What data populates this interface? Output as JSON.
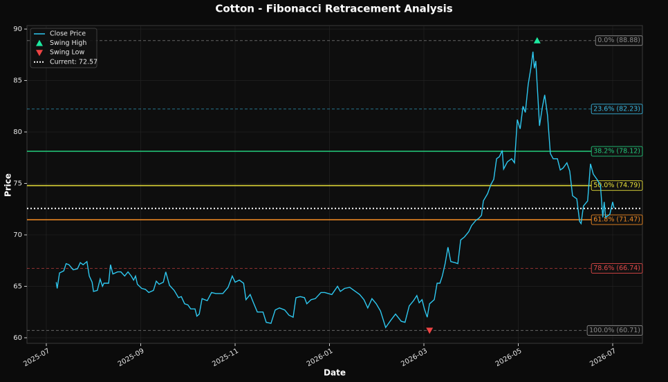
{
  "chart_data": {
    "type": "line",
    "title": "Cotton - Fibonacci Retracement Analysis",
    "xlabel": "Date",
    "ylabel": "Price",
    "x": [
      0.21,
      0.23,
      0.28,
      0.37,
      0.42,
      0.48,
      0.57,
      0.66,
      0.72,
      0.78,
      0.86,
      0.91,
      0.97,
      1.0,
      1.08,
      1.14,
      1.19,
      1.22,
      1.32,
      1.36,
      1.41,
      1.51,
      1.58,
      1.66,
      1.73,
      1.8,
      1.85,
      1.89,
      1.93,
      2.02,
      2.1,
      2.17,
      2.27,
      2.33,
      2.39,
      2.48,
      2.53,
      2.61,
      2.71,
      2.8,
      2.86,
      2.93,
      3.0,
      3.06,
      3.15,
      3.19,
      3.24,
      3.3,
      3.41,
      3.5,
      3.59,
      3.68,
      3.74,
      3.85,
      3.94,
      4.0,
      4.09,
      4.18,
      4.23,
      4.32,
      4.38,
      4.47,
      4.59,
      4.66,
      4.76,
      4.85,
      4.94,
      5.05,
      5.14,
      5.23,
      5.29,
      5.38,
      5.47,
      5.52,
      5.61,
      5.7,
      5.82,
      5.9,
      6.05,
      6.17,
      6.23,
      6.32,
      6.43,
      6.55,
      6.64,
      6.73,
      6.81,
      6.9,
      6.99,
      7.08,
      7.19,
      7.3,
      7.4,
      7.52,
      7.6,
      7.69,
      7.78,
      7.85,
      7.9,
      7.96,
      8.01,
      8.07,
      8.12,
      8.22,
      8.28,
      8.34,
      8.39,
      8.45,
      8.51,
      8.57,
      8.66,
      8.72,
      8.78,
      8.86,
      8.95,
      9.01,
      9.1,
      9.16,
      9.22,
      9.26,
      9.35,
      9.42,
      9.48,
      9.54,
      9.6,
      9.66,
      9.69,
      9.77,
      9.86,
      9.92,
      9.98,
      10.04,
      10.1,
      10.15,
      10.21,
      10.27,
      10.31,
      10.34,
      10.37,
      10.42,
      10.45,
      10.51,
      10.56,
      10.62,
      10.68,
      10.74,
      10.83,
      10.89,
      10.95,
      11.03,
      11.09,
      11.15,
      11.24,
      11.3,
      11.33,
      11.38,
      11.47,
      11.53,
      11.59,
      11.68,
      11.74,
      11.79,
      11.82,
      11.85,
      11.94,
      12.0,
      12.03
    ],
    "series": [
      {
        "name": "Close Price",
        "color": "#2ec8f0",
        "values": [
          65.4,
          64.8,
          66.3,
          66.5,
          67.2,
          67.1,
          66.6,
          66.7,
          67.3,
          67.1,
          67.4,
          66.0,
          65.4,
          64.5,
          64.6,
          65.7,
          65.0,
          65.3,
          65.3,
          67.1,
          66.2,
          66.4,
          66.4,
          66.0,
          66.4,
          66.0,
          65.6,
          66.0,
          65.2,
          64.8,
          64.7,
          64.4,
          64.6,
          65.5,
          65.2,
          65.4,
          66.4,
          65.1,
          64.6,
          63.9,
          64.0,
          63.3,
          63.2,
          62.8,
          62.8,
          62.1,
          62.3,
          63.8,
          63.6,
          64.4,
          64.3,
          64.3,
          64.3,
          64.9,
          66.0,
          65.4,
          65.6,
          65.3,
          63.7,
          64.2,
          63.5,
          62.5,
          62.5,
          61.5,
          61.4,
          62.7,
          62.9,
          62.7,
          62.2,
          62.0,
          63.9,
          64.0,
          63.9,
          63.3,
          63.7,
          63.8,
          64.4,
          64.4,
          64.2,
          65.0,
          64.5,
          64.8,
          64.9,
          64.5,
          64.2,
          63.7,
          62.9,
          63.8,
          63.3,
          62.6,
          61.0,
          61.7,
          62.3,
          61.6,
          61.5,
          63.1,
          63.6,
          64.1,
          63.4,
          63.7,
          62.8,
          62.0,
          63.3,
          63.7,
          65.3,
          65.3,
          66.0,
          67.2,
          68.8,
          67.4,
          67.3,
          67.2,
          69.5,
          69.8,
          70.3,
          70.9,
          71.4,
          71.6,
          71.9,
          73.3,
          74.0,
          74.9,
          75.4,
          77.4,
          77.6,
          78.2,
          76.4,
          77.1,
          77.4,
          77.0,
          81.2,
          80.3,
          82.5,
          81.9,
          84.6,
          86.3,
          87.8,
          86.2,
          86.9,
          83.0,
          80.6,
          82.4,
          83.6,
          81.6,
          77.9,
          77.4,
          77.4,
          76.3,
          76.5,
          77.0,
          76.2,
          73.8,
          73.5,
          71.3,
          71.1,
          72.8,
          73.3,
          76.9,
          75.9,
          75.3,
          74.8,
          71.7,
          73.2,
          71.7,
          72.0,
          73.2,
          72.6
        ]
      }
    ],
    "swing_high": {
      "name": "Swing High",
      "x": 10.4,
      "y": 88.88,
      "color": "#1de9a0"
    },
    "swing_low": {
      "name": "Swing Low",
      "x": 8.12,
      "y": 60.71,
      "color": "#ef4444"
    },
    "current": {
      "name": "Current: 72.57",
      "value": 72.57,
      "color": "#ffffff"
    },
    "levels": [
      {
        "label": "0.0% (88.88)",
        "value": 88.88,
        "color": "#8a8a8a",
        "style": "dashed"
      },
      {
        "label": "23.6% (82.23)",
        "value": 82.23,
        "color": "#38b6e0",
        "style": "dashed"
      },
      {
        "label": "38.2% (78.12)",
        "value": 78.12,
        "color": "#22c77a",
        "style": "solid"
      },
      {
        "label": "50.0% (74.79)",
        "value": 74.79,
        "color": "#e8e03a",
        "style": "solid"
      },
      {
        "label": "61.8% (71.47)",
        "value": 71.47,
        "color": "#f08a24",
        "style": "solid"
      },
      {
        "label": "78.6% (66.74)",
        "value": 66.74,
        "color": "#e04848",
        "style": "dashed"
      },
      {
        "label": "100.0% (60.71)",
        "value": 60.71,
        "color": "#8a8a8a",
        "style": "dashed"
      }
    ],
    "xlim": [
      -0.41,
      12.63
    ],
    "ylim": [
      59.46,
      90.34
    ],
    "xticks": [
      {
        "value": 0,
        "label": "2025-07"
      },
      {
        "value": 2,
        "label": "2025-09"
      },
      {
        "value": 4,
        "label": "2025-11"
      },
      {
        "value": 6,
        "label": "2026-01"
      },
      {
        "value": 8,
        "label": "2026-03"
      },
      {
        "value": 10,
        "label": "2026-05"
      },
      {
        "value": 12,
        "label": "2026-07"
      }
    ],
    "yticks": [
      60,
      65,
      70,
      75,
      80,
      85,
      90
    ],
    "grid": true,
    "legend": "upper left"
  }
}
